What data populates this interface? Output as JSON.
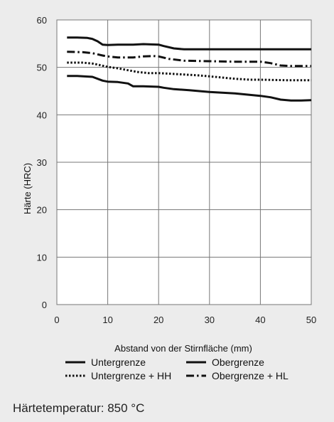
{
  "chart_data": {
    "type": "line",
    "title": "",
    "xlabel": "Abstand von der Stirnfläche (mm)",
    "ylabel": "Härte (HRC)",
    "xlim": [
      0,
      50
    ],
    "ylim": [
      0,
      60
    ],
    "xticks": [
      0,
      10,
      20,
      30,
      40,
      50
    ],
    "yticks": [
      0,
      10,
      20,
      30,
      40,
      50,
      60
    ],
    "grid": true,
    "legend_position": "bottom",
    "series": [
      {
        "name": "Untergrenze",
        "style": "solid",
        "x": [
          2,
          4,
          7,
          9,
          10,
          12,
          14,
          15,
          17,
          20,
          21,
          23,
          26,
          30,
          35,
          40,
          42,
          44,
          46,
          48,
          50
        ],
        "y": [
          48.2,
          48.2,
          48.0,
          47.2,
          47.0,
          46.9,
          46.6,
          46.0,
          46.0,
          45.9,
          45.7,
          45.4,
          45.2,
          44.8,
          44.5,
          44.0,
          43.7,
          43.2,
          43.0,
          43.0,
          43.1
        ]
      },
      {
        "name": "Obergrenze",
        "style": "solid",
        "x": [
          2,
          4,
          6,
          7,
          8,
          9,
          10,
          12,
          15,
          17,
          20,
          21,
          23,
          25,
          28,
          30,
          35,
          40,
          45,
          50
        ],
        "y": [
          56.3,
          56.3,
          56.2,
          56.0,
          55.5,
          54.8,
          54.7,
          54.8,
          54.8,
          54.9,
          54.8,
          54.5,
          54.0,
          53.8,
          53.8,
          53.8,
          53.8,
          53.8,
          53.8,
          53.8
        ]
      },
      {
        "name": "Untergrenze + HH",
        "style": "dotted",
        "x": [
          2,
          5,
          7,
          8,
          10,
          12,
          14,
          16,
          18,
          20,
          25,
          28,
          30,
          35,
          38,
          40,
          45,
          50
        ],
        "y": [
          51.0,
          51.0,
          50.8,
          50.6,
          50.1,
          49.8,
          49.4,
          49.0,
          48.8,
          48.8,
          48.5,
          48.3,
          48.1,
          47.6,
          47.4,
          47.4,
          47.3,
          47.3
        ]
      },
      {
        "name": "Obergrenze + HL",
        "style": "dashdot",
        "x": [
          2,
          5,
          7,
          9,
          10,
          12,
          15,
          17,
          19,
          20,
          22,
          25,
          30,
          35,
          40,
          42,
          44,
          46,
          48,
          50
        ],
        "y": [
          53.3,
          53.2,
          53.0,
          52.5,
          52.3,
          52.1,
          52.1,
          52.3,
          52.4,
          52.3,
          51.8,
          51.4,
          51.3,
          51.2,
          51.2,
          50.9,
          50.4,
          50.3,
          50.3,
          50.3
        ]
      }
    ]
  },
  "caption": "Härtetemperatur: 850 °C"
}
